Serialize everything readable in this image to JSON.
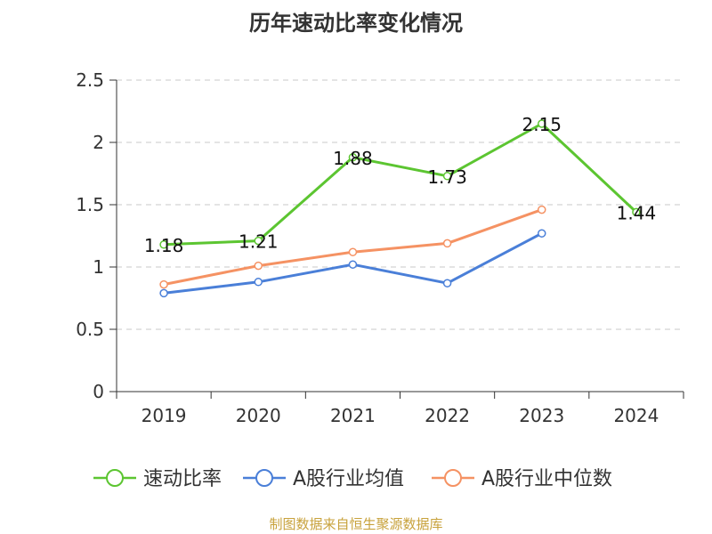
{
  "chart_data": {
    "type": "line",
    "title": "历年速动比率变化情况",
    "categories": [
      "2019",
      "2020",
      "2021",
      "2022",
      "2023",
      "2024"
    ],
    "yticks": [
      "0",
      "0.5",
      "1",
      "1.5",
      "2",
      "2.5"
    ],
    "ylim": [
      0,
      2.5
    ],
    "grid": true,
    "legend_position": "bottom",
    "series": [
      {
        "name": "速动比率",
        "color": "#5cc531",
        "values": [
          1.18,
          1.21,
          1.88,
          1.73,
          2.15,
          1.44
        ],
        "labels": [
          "1.18",
          "1.21",
          "1.88",
          "1.73",
          "2.15",
          "1.44"
        ]
      },
      {
        "name": "A股行业均值",
        "color": "#4a7fd8",
        "values": [
          0.79,
          0.88,
          1.02,
          0.87,
          1.27,
          null
        ]
      },
      {
        "name": "A股行业中位数",
        "color": "#f59263",
        "values": [
          0.86,
          1.01,
          1.12,
          1.19,
          1.46,
          null
        ]
      }
    ]
  },
  "source_note": "制图数据来自恒生聚源数据库"
}
